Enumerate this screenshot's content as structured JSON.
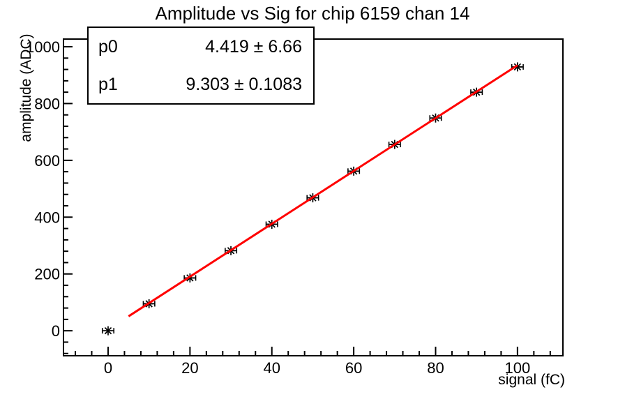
{
  "window": {
    "background": "#ffffff"
  },
  "chart_data": {
    "type": "scatter",
    "title": "Amplitude vs Sig for chip 6159 chan 14",
    "xlabel": "signal (fC)",
    "ylabel": "amplitude (ADC)",
    "xlim": [
      -10.9,
      111.1
    ],
    "ylim": [
      -88,
      1027
    ],
    "x_major_ticks": [
      0,
      20,
      40,
      60,
      80,
      100
    ],
    "x_minor_step": 4,
    "y_major_ticks": [
      0,
      200,
      400,
      600,
      800,
      1000
    ],
    "y_minor_step": 40,
    "grid": false,
    "legend_visible": false,
    "series": [
      {
        "name": "graph-points",
        "marker": "asterisk",
        "marker_color": "#000000",
        "x": [
          0,
          10,
          20,
          30,
          40,
          50,
          60,
          70,
          80,
          90,
          100
        ],
        "y": [
          0,
          95,
          186,
          282,
          375,
          468,
          562,
          656,
          749,
          840,
          929
        ],
        "x_err": 1.4
      }
    ],
    "fit": {
      "type": "linear",
      "p0": 4.419,
      "p1": 9.303,
      "x_start": 5,
      "x_end": 100,
      "color": "#ff0000",
      "line_width": 3
    }
  },
  "stats": {
    "rows": [
      {
        "label": "p0",
        "value": "4.419 ±  6.66"
      },
      {
        "label": "p1",
        "value": "9.303 ± 0.1083"
      }
    ]
  },
  "colors": {
    "fit_line": "#ff0000",
    "axis": "#000000",
    "marker": "#000000",
    "background": "#ffffff"
  }
}
